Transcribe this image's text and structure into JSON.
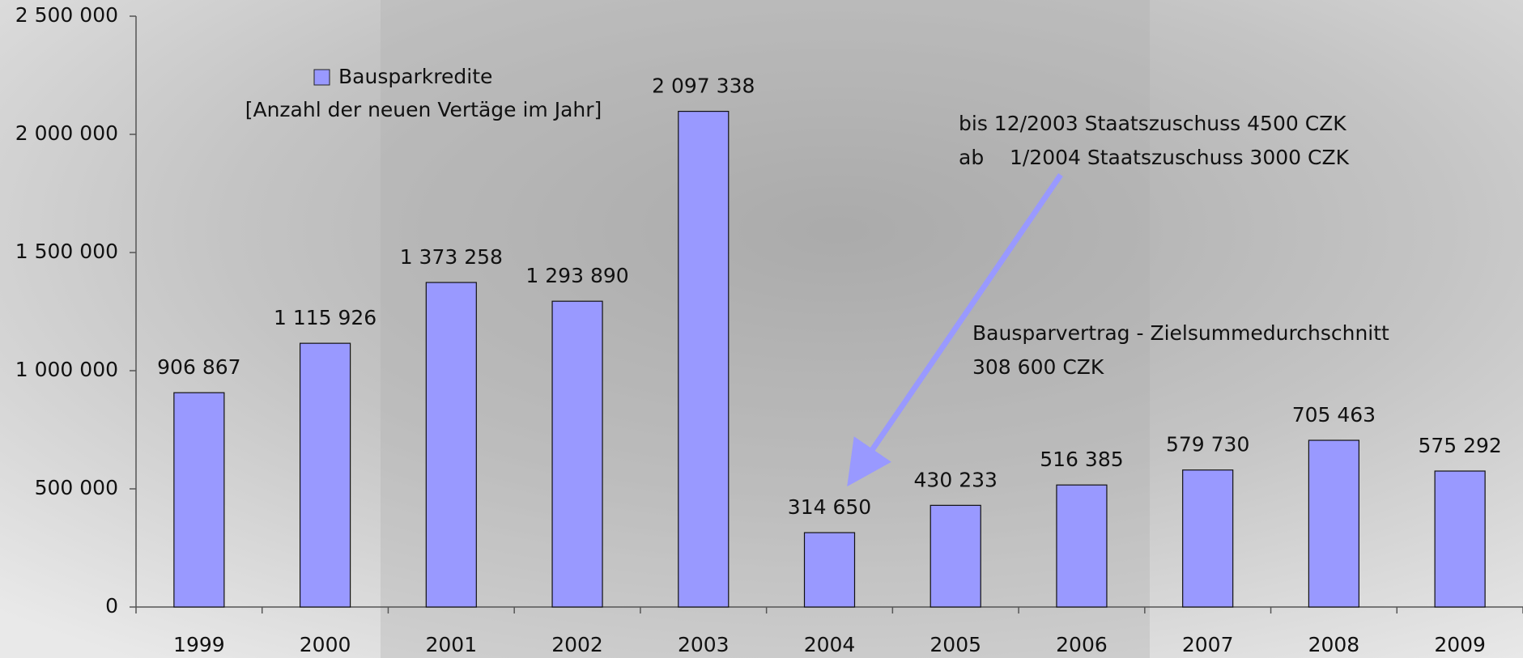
{
  "chart_data": {
    "type": "bar",
    "categories": [
      "1999",
      "2000",
      "2001",
      "2002",
      "2003",
      "2004",
      "2005",
      "2006",
      "2007",
      "2008",
      "2009"
    ],
    "series": [
      {
        "name": "Bausparkredite",
        "color": "#9999ff",
        "values": [
          906867,
          1115926,
          1373258,
          1293890,
          2097338,
          314650,
          430233,
          516385,
          579730,
          705463,
          575292
        ],
        "value_labels": [
          "906 867",
          "1 115 926",
          "1 373 258",
          "1 293 890",
          "2 097 338",
          "314 650",
          "430 233",
          "516 385",
          "579 730",
          "705 463",
          "575 292"
        ]
      }
    ],
    "legend_subtitle": "[Anzahl der neuen Vertäge im Jahr]",
    "annotations": [
      "bis 12/2003 Staatszuschuss 4500 CZK",
      "ab    1/2004 Staatszuschuss 3000 CZK",
      "Bausparvertrag - Zielsummedurchschnitt",
      "308 600 CZK"
    ],
    "ylim": [
      0,
      2500000
    ],
    "yticks": [
      0,
      {
        "value": 500000,
        "label": "500 000"
      },
      {
        "value": 1000000,
        "label": "1 000 000"
      },
      {
        "value": 1500000,
        "label": "1 500 000"
      },
      {
        "value": 2000000,
        "label": "2 000 000"
      },
      {
        "value": 2500000,
        "label": "2 500 000"
      }
    ],
    "grid": false
  }
}
